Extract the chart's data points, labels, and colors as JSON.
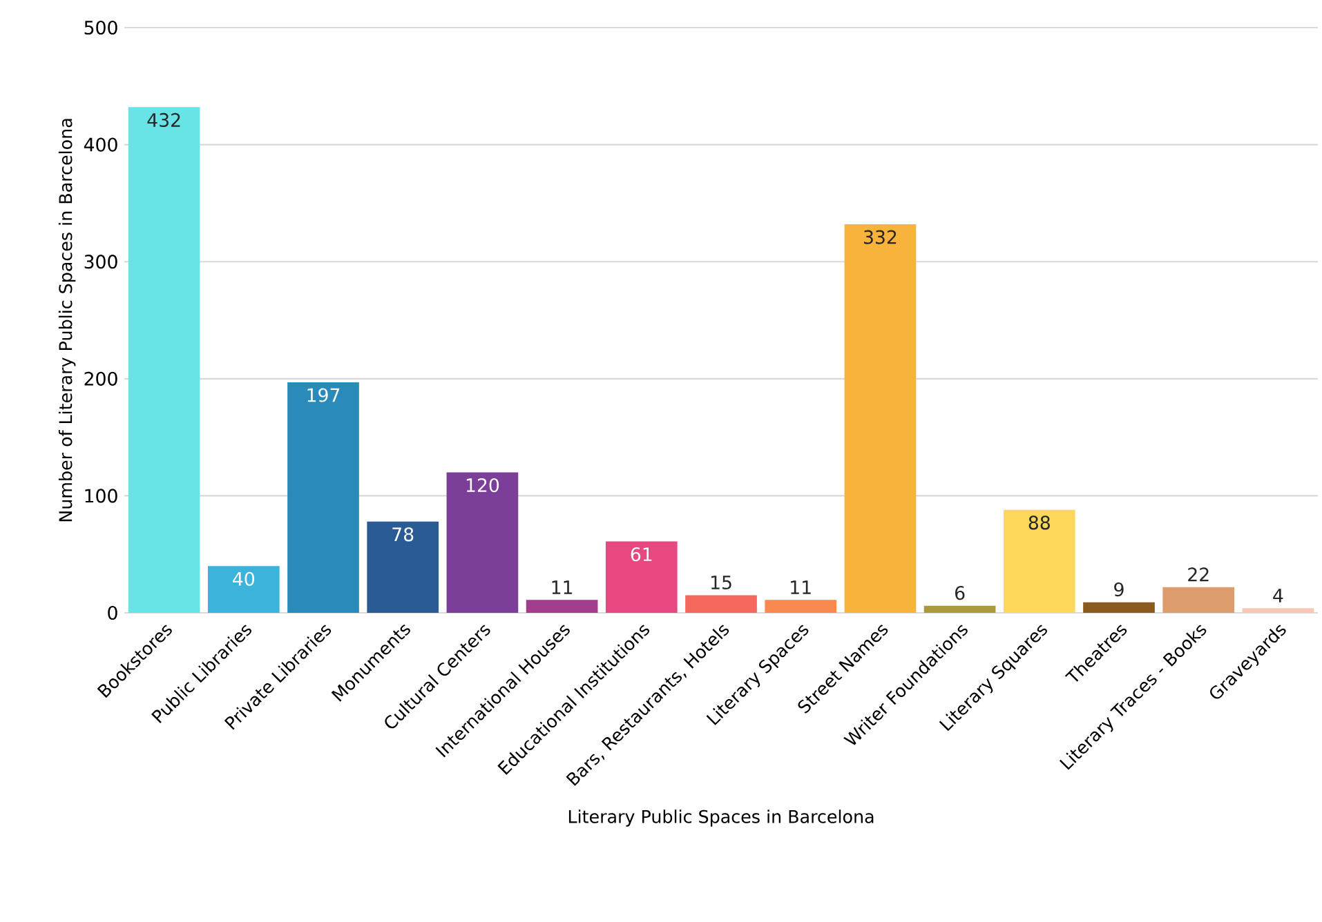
{
  "chart_data": {
    "type": "bar",
    "xlabel": "Literary Public Spaces in Barcelona",
    "ylabel": "Number of Literary Public Spaces in Barcelona",
    "categories": [
      "Bookstores",
      "Public Libraries",
      "Private Libraries",
      "Monuments",
      "Cultural Centers",
      "International Houses",
      "Educational Institutions",
      "Bars, Restaurants, Hotels",
      "Literary Spaces",
      "Street Names",
      "Writer Foundations",
      "Literary Squares",
      "Theatres",
      "Literary Traces - Books",
      "Graveyards"
    ],
    "values": [
      432,
      40,
      197,
      78,
      120,
      11,
      61,
      15,
      11,
      332,
      6,
      88,
      9,
      22,
      4
    ],
    "colors": [
      "#69e4e6",
      "#3bb3da",
      "#2a8ab9",
      "#2b5b94",
      "#7b3f9a",
      "#a23d8e",
      "#e84882",
      "#f4685e",
      "#f98a4f",
      "#f8b33c",
      "#a99a3b",
      "#fdd85a",
      "#8b5a1e",
      "#dd9c6b",
      "#f8c8b5"
    ],
    "ylim": [
      0,
      500
    ],
    "yticks": [
      0,
      100,
      200,
      300,
      400,
      500
    ],
    "grid": "y",
    "data_labels": true
  }
}
